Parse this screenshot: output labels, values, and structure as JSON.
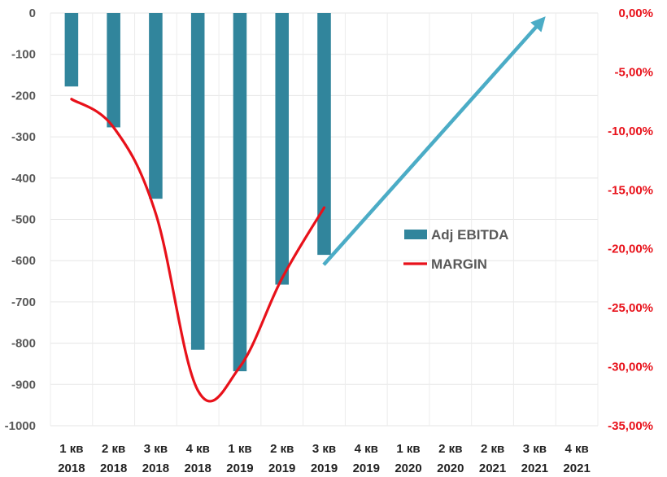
{
  "chart_data": {
    "type": "bar",
    "categories": [
      [
        "1 кв",
        "2018"
      ],
      [
        "2 кв",
        "2018"
      ],
      [
        "3 кв",
        "2018"
      ],
      [
        "4 кв",
        "2018"
      ],
      [
        "1 кв",
        "2019"
      ],
      [
        "2 кв",
        "2019"
      ],
      [
        "3 кв",
        "2019"
      ],
      [
        "4 кв",
        "2019"
      ],
      [
        "1 кв",
        "2020"
      ],
      [
        "2 кв",
        "2020"
      ],
      [
        "2 кв",
        "2021"
      ],
      [
        "3 кв",
        "2021"
      ],
      [
        "4 кв",
        "2021"
      ]
    ],
    "series": [
      {
        "name": "Adj EBITDA",
        "type": "bar",
        "axis": "left",
        "color": "#31859c",
        "values": [
          -178,
          -277,
          -450,
          -816,
          -868,
          -658,
          -586,
          null,
          null,
          null,
          null,
          null,
          null
        ]
      },
      {
        "name": "MARGIN",
        "type": "line",
        "axis": "right",
        "color": "#e8111a",
        "values": [
          -0.073,
          -0.097,
          -0.17,
          -0.32,
          -0.3,
          -0.225,
          -0.165,
          null,
          null,
          null,
          null,
          null,
          null
        ]
      }
    ],
    "y_left": {
      "ylim": [
        -1000,
        0
      ],
      "ticks": [
        0,
        -100,
        -200,
        -300,
        -400,
        -500,
        -600,
        -700,
        -800,
        -900,
        -1000
      ]
    },
    "y_right": {
      "ylim": [
        -0.35,
        0
      ],
      "ticks": [
        "0,00%",
        "-5,00%",
        "-10,00%",
        "-15,00%",
        "-20,00%",
        "-25,00%",
        "-30,00%",
        "-35,00%"
      ]
    },
    "trend_arrow": {
      "color": "#4bacc6"
    },
    "grid": true,
    "legend": {
      "position": "right-center"
    }
  }
}
